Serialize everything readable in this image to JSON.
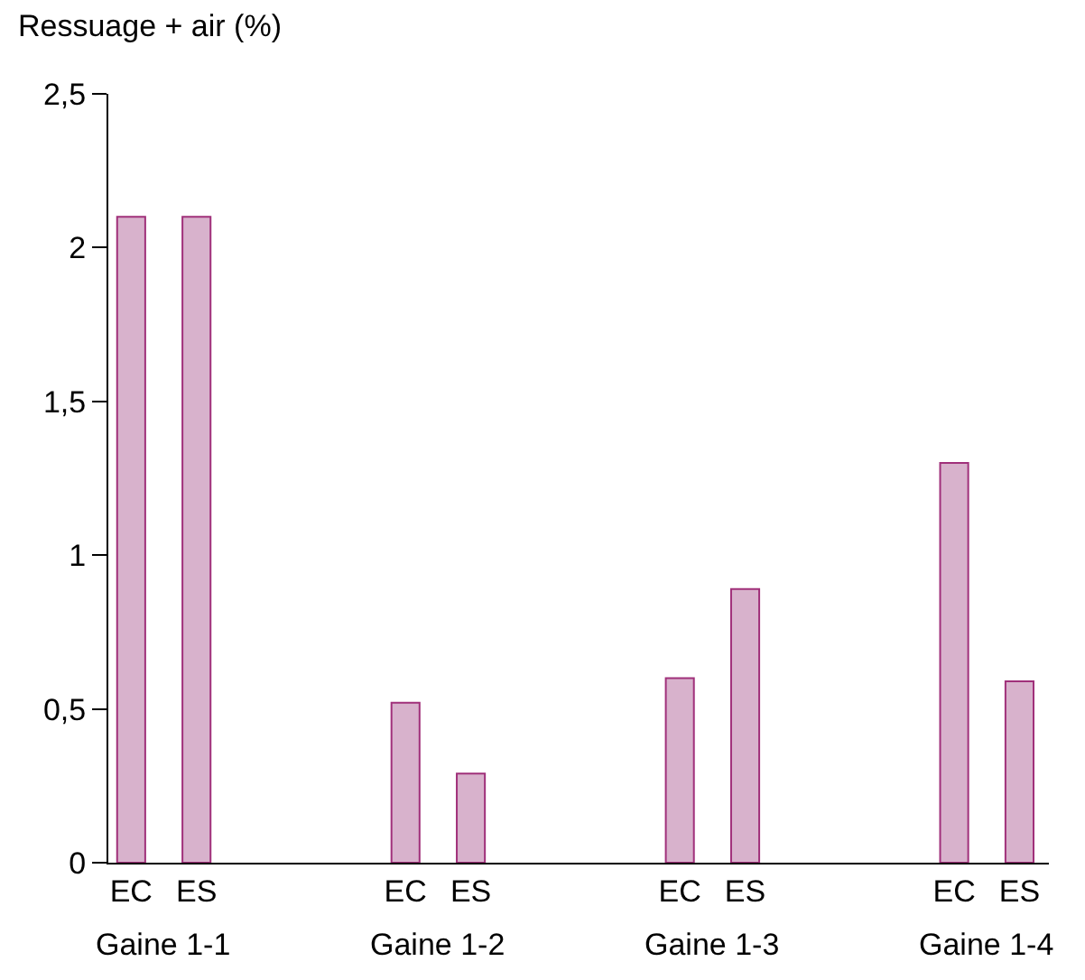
{
  "chart_data": {
    "type": "bar",
    "ylabel": "Ressuage + air (%)",
    "categories": [
      "EC",
      "ES",
      "EC",
      "ES",
      "EC",
      "ES",
      "EC",
      "ES"
    ],
    "values": [
      2.1,
      2.1,
      0.52,
      0.29,
      0.6,
      0.89,
      1.3,
      0.59
    ],
    "color": "#d8b2cc",
    "annotations": [
      "Gaine 1-1",
      "Gaine 1-2",
      "Gaine 1-3",
      "Gaine 1-4"
    ],
    "ylim": [
      0,
      2.5
    ],
    "yticks": [
      0,
      {
        "value": 0.5,
        "label": "0,5"
      },
      1,
      {
        "value": 1.5,
        "label": "1,5"
      },
      2,
      {
        "value": 2.5,
        "label": "2,5"
      }
    ],
    "grid": false
  }
}
